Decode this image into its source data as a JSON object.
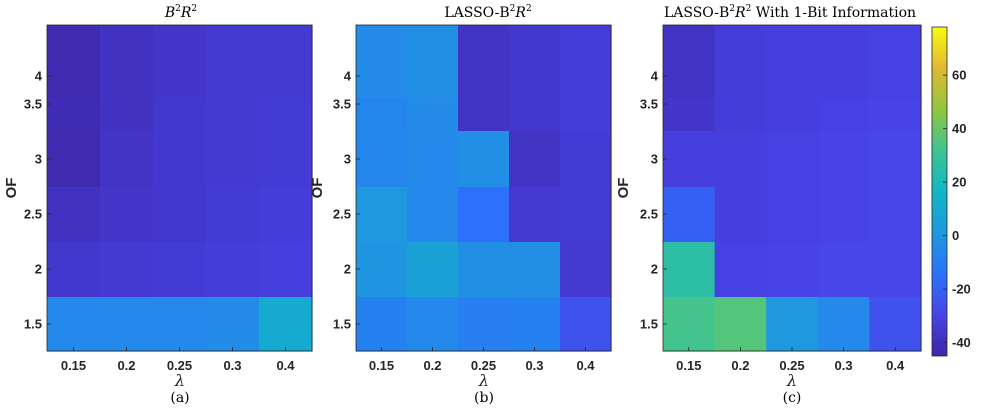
{
  "chart_data": [
    {
      "type": "heatmap",
      "title": "B²R²",
      "title_parts": {
        "base": "B",
        "sup1": "2",
        "mid": "R",
        "sup2": "2"
      },
      "xlabel": "λ",
      "ylabel": "OF",
      "caption": "(a)",
      "x": [
        "0.15",
        "0.2",
        "0.25",
        "0.3",
        "0.4"
      ],
      "y": [
        "4",
        "3.5",
        "3",
        "2.5",
        "2",
        "1.5"
      ],
      "values": [
        [
          -43,
          -39,
          -37,
          -35,
          -35
        ],
        [
          -42,
          -39,
          -36,
          -35,
          -34
        ],
        [
          -43,
          -38,
          -36,
          -35,
          -34
        ],
        [
          -39,
          -37,
          -36,
          -34,
          -33
        ],
        [
          -36,
          -35,
          -34,
          -33,
          -32
        ],
        [
          -5,
          -5,
          -5,
          -4,
          10
        ]
      ]
    },
    {
      "type": "heatmap",
      "title": "LASSO-B²R²",
      "title_parts": {
        "base": "LASSO-B",
        "sup1": "2",
        "mid": "R",
        "sup2": "2"
      },
      "xlabel": "λ",
      "ylabel": "OF",
      "caption": "(b)",
      "x": [
        "0.15",
        "0.2",
        "0.25",
        "0.3",
        "0.4"
      ],
      "y": [
        "4",
        "3.5",
        "3",
        "2.5",
        "2",
        "1.5"
      ],
      "values": [
        [
          -4,
          -2,
          -38,
          -36,
          -33
        ],
        [
          -6,
          -4,
          -38,
          -36,
          -33
        ],
        [
          -6,
          -5,
          -3,
          -38,
          -34
        ],
        [
          1,
          -5,
          -15,
          -35,
          -34
        ],
        [
          0,
          6,
          -2,
          -3,
          -35
        ],
        [
          -8,
          -5,
          -9,
          -8,
          -25
        ]
      ]
    },
    {
      "type": "heatmap",
      "title": "LASSO-B²R² With 1-Bit Information",
      "title_parts": {
        "base": "LASSO-B",
        "sup1": "2",
        "mid": "R",
        "sup2": "2",
        "suffix": " With 1-Bit Information"
      },
      "xlabel": "λ",
      "ylabel": "OF",
      "caption": "(c)",
      "x": [
        "0.15",
        "0.2",
        "0.25",
        "0.3",
        "0.4"
      ],
      "y": [
        "4",
        "3.5",
        "3",
        "2.5",
        "2",
        "1.5"
      ],
      "values": [
        [
          -38,
          -33,
          -32,
          -32,
          -31
        ],
        [
          -37,
          -33,
          -32,
          -31,
          -30
        ],
        [
          -32,
          -32,
          -31,
          -30,
          -29
        ],
        [
          -20,
          -32,
          -31,
          -30,
          -29
        ],
        [
          26,
          -31,
          -30,
          -29,
          -29
        ],
        [
          33,
          36,
          1,
          -5,
          -25
        ]
      ]
    }
  ],
  "colorbar": {
    "min": -45,
    "max": 78,
    "ticks": [
      "60",
      "40",
      "20",
      "0",
      "-20",
      "-40"
    ],
    "tick_values": [
      60,
      40,
      20,
      0,
      -20,
      -40
    ],
    "colormap": "parula"
  }
}
